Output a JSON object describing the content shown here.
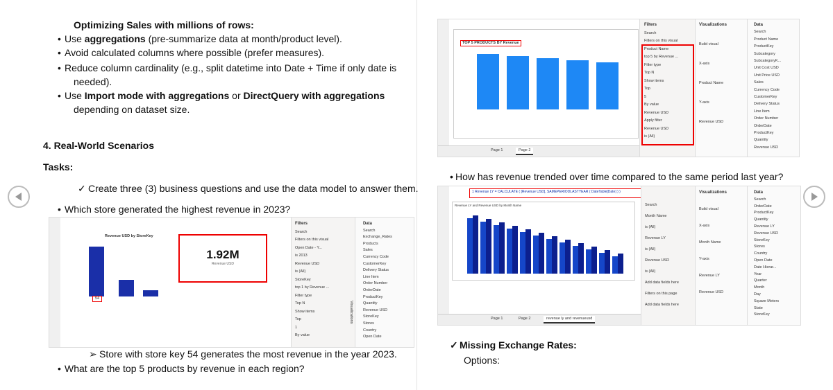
{
  "left": {
    "heading": "Optimizing Sales with millions of rows:",
    "bullets": [
      [
        "Use ",
        "aggregations",
        " (pre-summarize data at month/product level)."
      ],
      [
        "Avoid calculated columns where possible (prefer measures)."
      ],
      [
        "Reduce column cardinality (e.g., split datetime into Date + Time if only date is needed)."
      ],
      [
        "Use ",
        "Import mode with aggregations",
        " or ",
        "DirectQuery with aggregations",
        " depending on dataset size."
      ]
    ],
    "section_title": "4. Real-World Scenarios",
    "tasks_label": "Tasks:",
    "check_item": "Create three (3) business questions and use the data model to answer them.",
    "question1": "Which store generated the highest revenue in 2023?",
    "answer1": "Store with store key 54 generates the most revenue in the year 2023.",
    "question2": "What are the top 5 products by revenue in each region?"
  },
  "right": {
    "question3": "How has revenue trended over time compared to the same period last year?",
    "missing": "Missing Exchange Rates:",
    "options": "Options:"
  },
  "screenshot1": {
    "chart_title": "Revenue USD by StoreKey",
    "highlight_label": "54",
    "card_value": "1.92M",
    "card_label": "Revenue USD",
    "viz_label": "Visualizations",
    "filters": [
      "Filters",
      "Search",
      "Filters on this visual",
      "Open Date - Y...",
      "is 2013",
      "Revenue USD",
      "is (All)",
      "StoreKey",
      "top 1 by Revenue ...",
      "Filter type",
      "Top N",
      "Show items",
      "Top",
      "1",
      "By value"
    ],
    "data_pane": [
      "Data",
      "Search",
      "Exchange_Rates",
      "Products",
      "Sales",
      "Currency Code",
      "CustomerKey",
      "Delivery Status",
      "Line Item",
      "Order Number",
      "OrderDate",
      "ProductKey",
      "Quantity",
      "Revenue USD",
      "StoreKey",
      "Stores",
      "Country",
      "Open Date"
    ]
  },
  "screenshot2": {
    "chart_title": "TOP 5 PRODUCTS BY Revenue",
    "filters": [
      "Filters",
      "Search",
      "Filters on this visual",
      "Product Name",
      "top 5 by Revenue ...",
      "Filter type",
      "Top N",
      "Show items",
      "Top",
      "5",
      "By value",
      "Revenue USD",
      "Apply filter",
      "Revenue USD",
      "is (All)"
    ],
    "viz": [
      "Visualizations",
      "Build visual",
      "X-axis",
      "Product Name",
      "Y-axis",
      "Revenue USD"
    ],
    "data_pane": [
      "Data",
      "Search",
      "Product Name",
      "ProductKey",
      "Subcategory",
      "SubcategoryK...",
      "Unit Cost USD",
      "Unit Price USD",
      "Sales",
      "Currency Code",
      "CustomerKey",
      "Delivery Status",
      "Line Item",
      "Order Number",
      "OrderDate",
      "ProductKey",
      "Quantity",
      "Revenue USD"
    ],
    "tabs": [
      "Page 1",
      "Page 2"
    ]
  },
  "screenshot3": {
    "formula": "1  Revenue LY = CALCULATE ( [Revenue USD], SAMEPERIODLASTYEAR ( DateTable[Date] ) )",
    "chart_title": "Revenue LY and Revenue USD by Month Name",
    "filters": [
      "Search",
      "Month Name",
      "is (All)",
      "Revenue LY",
      "is (All)",
      "Revenue USD",
      "is (All)",
      "Add data fields here",
      "Filters on this page",
      "Add data fields here"
    ],
    "viz": [
      "Visualizations",
      "Build visual",
      "X-axis",
      "Month Name",
      "Y-axis",
      "Revenue LY",
      "Revenue USD"
    ],
    "data_pane": [
      "Data",
      "Search",
      "OrderDate",
      "ProductKey",
      "Quantity",
      "Revenue LY",
      "Revenue USD",
      "StoreKey",
      "Stores",
      "Country",
      "Open Date",
      "Date Hierar...",
      "Year",
      "Quarter",
      "Month",
      "Day",
      "Square Meters",
      "State",
      "StoreKey"
    ],
    "tabs": [
      "Page 1",
      "Page 2",
      "revenue ly and revenueusd"
    ]
  }
}
